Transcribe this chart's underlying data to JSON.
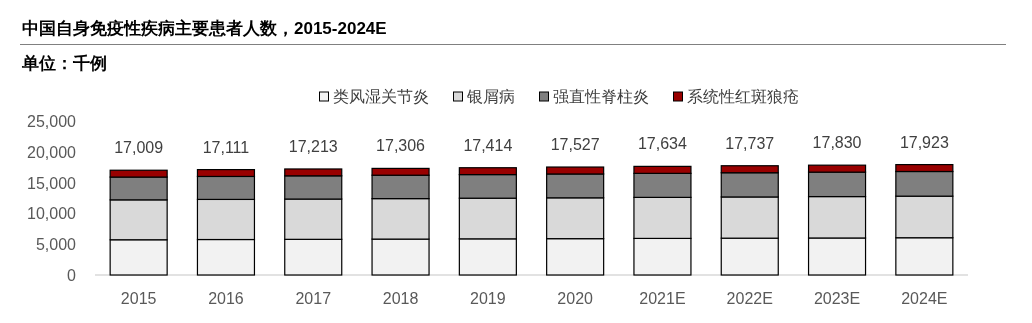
{
  "chart_data": {
    "type": "bar",
    "stacked": true,
    "title": "中国自身免疫性疾病主要患者人数，2015-2024E",
    "subtitle": "单位：千例",
    "categories": [
      "2015",
      "2016",
      "2017",
      "2018",
      "2019",
      "2020",
      "2021E",
      "2022E",
      "2023E",
      "2024E"
    ],
    "series": [
      {
        "name": "类风湿关节炎",
        "color": "#f2f2f2",
        "values": [
          5720,
          5760,
          5790,
          5830,
          5870,
          5900,
          5940,
          5980,
          6010,
          6050
        ]
      },
      {
        "name": "银屑病",
        "color": "#d9d9d9",
        "values": [
          6480,
          6510,
          6540,
          6570,
          6600,
          6630,
          6660,
          6690,
          6720,
          6750
        ]
      },
      {
        "name": "强直性脊柱炎",
        "color": "#7f7f7f",
        "values": [
          3700,
          3730,
          3770,
          3800,
          3830,
          3870,
          3900,
          3930,
          3970,
          4000
        ]
      },
      {
        "name": "系统性红斑狼疮",
        "color": "#990000",
        "values": [
          1109,
          1111,
          1113,
          1106,
          1114,
          1127,
          1134,
          1137,
          1130,
          1123
        ]
      }
    ],
    "totals": [
      "17,009",
      "17,111",
      "17,213",
      "17,306",
      "17,414",
      "17,527",
      "17,634",
      "17,737",
      "17,830",
      "17,923"
    ],
    "ylim": [
      0,
      25000
    ],
    "yticks": [
      {
        "value": 0,
        "label": "0"
      },
      {
        "value": 5000,
        "label": "5,000"
      },
      {
        "value": 10000,
        "label": "10,000"
      },
      {
        "value": 15000,
        "label": "15,000"
      },
      {
        "value": 20000,
        "label": "20,000"
      },
      {
        "value": 25000,
        "label": "25,000"
      }
    ],
    "grid": false,
    "legend": "top"
  }
}
